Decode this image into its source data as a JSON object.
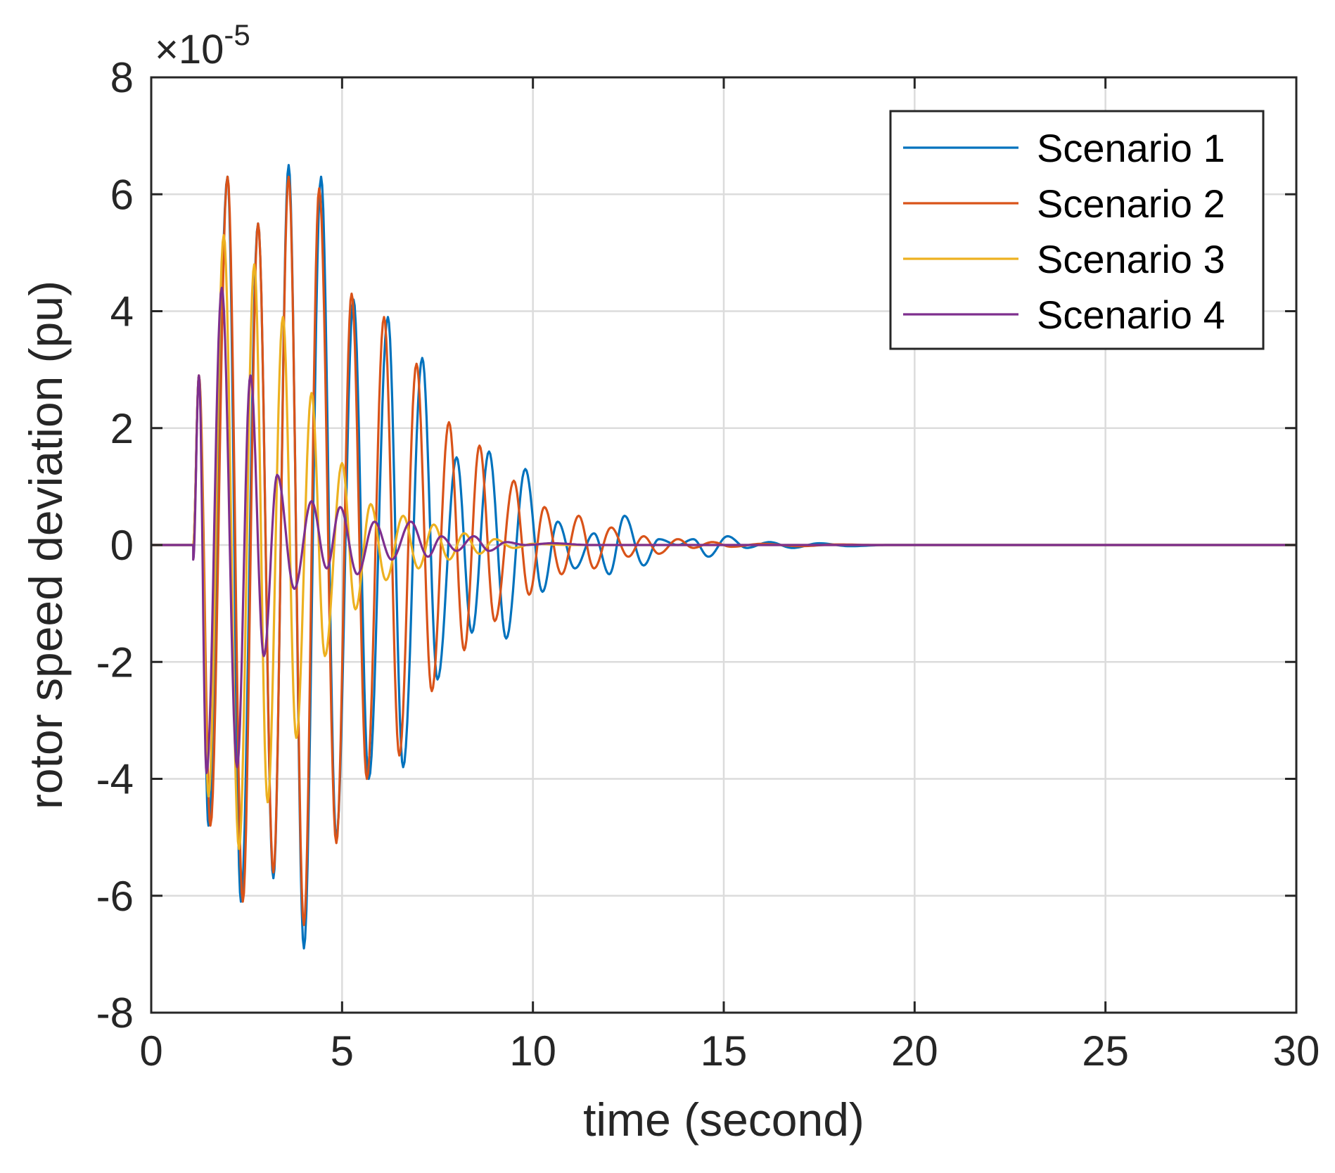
{
  "chart_data": {
    "type": "line",
    "title": "",
    "xlabel": "time (second)",
    "ylabel": "rotor speed deviation (pu)",
    "xlim": [
      0,
      30
    ],
    "ylim": [
      -8,
      8
    ],
    "y_exponent_prefix": "×10",
    "y_exponent_power": "-5",
    "xticks": [
      "0",
      "5",
      "10",
      "15",
      "20",
      "25",
      "30"
    ],
    "yticks": [
      "8",
      "6",
      "4",
      "2",
      "0",
      "-2",
      "-4",
      "-6",
      "-8"
    ],
    "grid": true,
    "legend_position": "top-right",
    "disturbance_time": 1.1,
    "series": [
      {
        "name": "Scenario 1",
        "color": "#0072BD",
        "peaks": [
          [
            1.25,
            2.9
          ],
          [
            1.5,
            -4.8
          ],
          [
            2.0,
            6.3
          ],
          [
            2.35,
            -6.1
          ],
          [
            2.8,
            5.5
          ],
          [
            3.2,
            -5.7
          ],
          [
            3.6,
            6.5
          ],
          [
            4.0,
            -6.9
          ],
          [
            4.45,
            6.3
          ],
          [
            4.85,
            -5.0
          ],
          [
            5.3,
            4.2
          ],
          [
            5.7,
            -4.0
          ],
          [
            6.2,
            3.9
          ],
          [
            6.6,
            -3.8
          ],
          [
            7.1,
            3.2
          ],
          [
            7.5,
            -2.3
          ],
          [
            8.0,
            1.5
          ],
          [
            8.4,
            -1.5
          ],
          [
            8.85,
            1.6
          ],
          [
            9.3,
            -1.6
          ],
          [
            9.8,
            1.3
          ],
          [
            10.25,
            -0.8
          ],
          [
            10.65,
            0.4
          ],
          [
            11.1,
            -0.4
          ],
          [
            11.6,
            0.2
          ],
          [
            12.0,
            -0.5
          ],
          [
            12.4,
            0.5
          ],
          [
            12.9,
            -0.35
          ],
          [
            13.3,
            0.1
          ],
          [
            13.8,
            0.0
          ],
          [
            14.2,
            0.1
          ],
          [
            14.6,
            -0.2
          ],
          [
            15.1,
            0.15
          ],
          [
            15.6,
            -0.05
          ],
          [
            16.2,
            0.05
          ],
          [
            16.8,
            -0.05
          ],
          [
            17.5,
            0.03
          ],
          [
            18.3,
            -0.02
          ],
          [
            19.3,
            0.0
          ],
          [
            30,
            0.0
          ]
        ]
      },
      {
        "name": "Scenario 2",
        "color": "#D95319",
        "peaks": [
          [
            1.25,
            2.9
          ],
          [
            1.55,
            -4.8
          ],
          [
            2.0,
            6.3
          ],
          [
            2.4,
            -6.1
          ],
          [
            2.8,
            5.5
          ],
          [
            3.2,
            -5.6
          ],
          [
            3.6,
            6.3
          ],
          [
            4.0,
            -6.5
          ],
          [
            4.4,
            6.1
          ],
          [
            4.85,
            -5.1
          ],
          [
            5.25,
            4.3
          ],
          [
            5.65,
            -4.0
          ],
          [
            6.1,
            3.9
          ],
          [
            6.5,
            -3.6
          ],
          [
            6.95,
            3.1
          ],
          [
            7.35,
            -2.5
          ],
          [
            7.8,
            2.1
          ],
          [
            8.2,
            -1.8
          ],
          [
            8.6,
            1.7
          ],
          [
            9.0,
            -1.3
          ],
          [
            9.5,
            1.1
          ],
          [
            9.9,
            -0.85
          ],
          [
            10.3,
            0.65
          ],
          [
            10.75,
            -0.5
          ],
          [
            11.2,
            0.5
          ],
          [
            11.6,
            -0.4
          ],
          [
            12.05,
            0.3
          ],
          [
            12.5,
            -0.2
          ],
          [
            12.9,
            0.15
          ],
          [
            13.3,
            -0.15
          ],
          [
            13.8,
            0.1
          ],
          [
            14.2,
            -0.05
          ],
          [
            14.7,
            0.05
          ],
          [
            15.2,
            -0.03
          ],
          [
            16.0,
            0.02
          ],
          [
            17.0,
            -0.02
          ],
          [
            18.0,
            0.01
          ],
          [
            19.0,
            0.0
          ],
          [
            30,
            0.0
          ]
        ]
      },
      {
        "name": "Scenario 3",
        "color": "#EDB120",
        "peaks": [
          [
            1.25,
            2.9
          ],
          [
            1.5,
            -4.3
          ],
          [
            1.9,
            5.3
          ],
          [
            2.3,
            -5.2
          ],
          [
            2.7,
            4.8
          ],
          [
            3.05,
            -4.4
          ],
          [
            3.45,
            3.9
          ],
          [
            3.8,
            -3.3
          ],
          [
            4.2,
            2.6
          ],
          [
            4.55,
            -1.9
          ],
          [
            5.0,
            1.4
          ],
          [
            5.35,
            -1.1
          ],
          [
            5.75,
            0.7
          ],
          [
            6.15,
            -0.6
          ],
          [
            6.6,
            0.5
          ],
          [
            7.0,
            -0.4
          ],
          [
            7.4,
            0.35
          ],
          [
            7.8,
            -0.25
          ],
          [
            8.2,
            0.2
          ],
          [
            8.6,
            -0.15
          ],
          [
            9.0,
            0.1
          ],
          [
            9.5,
            -0.05
          ],
          [
            10.0,
            0.02
          ],
          [
            11.0,
            0.0
          ],
          [
            30,
            0.0
          ]
        ]
      },
      {
        "name": "Scenario 4",
        "color": "#7E2F8E",
        "peaks": [
          [
            1.1,
            -0.25
          ],
          [
            1.25,
            2.9
          ],
          [
            1.45,
            -3.9
          ],
          [
            1.85,
            4.4
          ],
          [
            2.25,
            -3.8
          ],
          [
            2.6,
            2.9
          ],
          [
            2.95,
            -1.9
          ],
          [
            3.3,
            1.2
          ],
          [
            3.75,
            -0.75
          ],
          [
            4.2,
            0.75
          ],
          [
            4.6,
            -0.4
          ],
          [
            4.95,
            0.65
          ],
          [
            5.4,
            -0.5
          ],
          [
            5.85,
            0.4
          ],
          [
            6.3,
            -0.25
          ],
          [
            6.8,
            0.4
          ],
          [
            7.25,
            -0.2
          ],
          [
            7.6,
            0.15
          ],
          [
            8.0,
            -0.1
          ],
          [
            8.45,
            0.15
          ],
          [
            8.85,
            -0.1
          ],
          [
            9.3,
            0.05
          ],
          [
            9.8,
            0.0
          ],
          [
            10.5,
            0.03
          ],
          [
            11.5,
            0.0
          ],
          [
            30,
            0.0
          ]
        ]
      }
    ]
  }
}
